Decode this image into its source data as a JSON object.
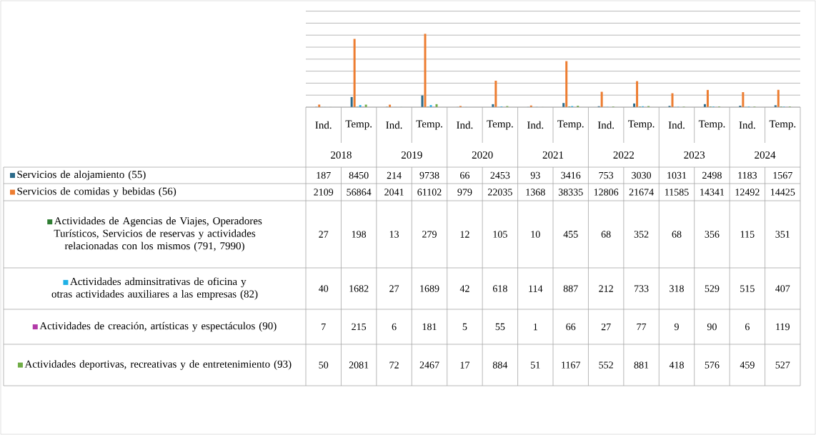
{
  "chart_data": {
    "type": "bar",
    "categories": [
      "Ind.",
      "Temp.",
      "Ind.",
      "Temp.",
      "Ind.",
      "Temp.",
      "Ind.",
      "Temp.",
      "Ind.",
      "Temp.",
      "Ind.",
      "Temp.",
      "Ind.",
      "Temp."
    ],
    "annotations": [
      "2018",
      "2019",
      "2020",
      "2021",
      "2022",
      "2023",
      "2024"
    ],
    "series": [
      {
        "name": "Servicios de alojamiento (55)",
        "color": "#2b6a8a",
        "values": [
          187,
          8450,
          214,
          9738,
          66,
          2453,
          93,
          3416,
          753,
          3030,
          1031,
          2498,
          1183,
          1567
        ]
      },
      {
        "name": "Servicios de comidas y bebidas (56)",
        "color": "#ed7d31",
        "values": [
          2109,
          56864,
          2041,
          61102,
          979,
          22035,
          1368,
          38335,
          12806,
          21674,
          11585,
          14341,
          12492,
          14425
        ]
      },
      {
        "name": "Actividades de Agencias de Viajes, Operadores Turísticos, Servicios de reservas y actividades relacionadas con los mismos (791, 7990)",
        "color": "#2e7d32",
        "values": [
          27,
          198,
          13,
          279,
          12,
          105,
          10,
          455,
          68,
          352,
          68,
          356,
          115,
          351
        ]
      },
      {
        "name": "Actividades adminsitrativas de oficina y otras actividades auxiliares a las empresas (82)",
        "color": "#1fb1e6",
        "values": [
          40,
          1682,
          27,
          1689,
          42,
          618,
          114,
          887,
          212,
          733,
          318,
          529,
          515,
          407
        ]
      },
      {
        "name": "Actividades de creación, artísticas y espectáculos (90)",
        "color": "#b23aa8",
        "values": [
          7,
          215,
          6,
          181,
          5,
          55,
          1,
          66,
          27,
          77,
          9,
          90,
          6,
          119
        ]
      },
      {
        "name": "Actividades deportivas, recreativas y de entretenimiento (93)",
        "color": "#70ad47",
        "values": [
          50,
          2081,
          72,
          2467,
          17,
          884,
          51,
          1167,
          552,
          881,
          418,
          576,
          459,
          527
        ]
      }
    ],
    "ylim": [
      0,
      80000
    ],
    "yticks": [
      {
        "value": 0,
        "label": null
      },
      {
        "value": 10000,
        "label": null
      },
      {
        "value": 20000,
        "label": null
      },
      {
        "value": 30000,
        "label": null
      },
      {
        "value": 40000,
        "label": null
      },
      {
        "value": 50000,
        "label": null
      },
      {
        "value": 60000,
        "label": null
      },
      {
        "value": 70000,
        "label": null
      },
      {
        "value": 80000,
        "label": null
      }
    ],
    "grid": "y",
    "data_labels": true,
    "legend": "bottom left",
    "tick_labels": "x"
  }
}
